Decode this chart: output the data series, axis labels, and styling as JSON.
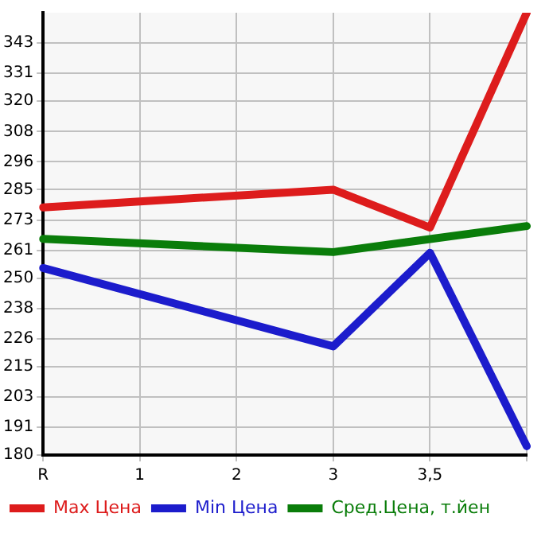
{
  "chart_data": {
    "type": "line",
    "categories": [
      "R",
      "1",
      "2",
      "3",
      "3,5",
      null
    ],
    "series": [
      {
        "name": "Max Цена",
        "color": "#dd1c1c",
        "values": [
          278,
          null,
          null,
          285,
          270,
          355
        ]
      },
      {
        "name": "Min Цена",
        "color": "#1c1ccc",
        "values": [
          254,
          null,
          null,
          223,
          260,
          183.5
        ]
      },
      {
        "name": "Сред.Цена, т.йен",
        "color": "#0a7d0a",
        "values": [
          265.5,
          null,
          null,
          260.3,
          null,
          270.6
        ]
      }
    ],
    "ylim": [
      180,
      355
    ],
    "yticks": [
      180,
      191,
      203,
      215,
      226,
      238,
      250,
      261,
      273,
      285,
      296,
      308,
      320,
      331,
      343
    ],
    "grid": true,
    "legend": "bottom",
    "marker": "none",
    "line_style": "solid"
  }
}
